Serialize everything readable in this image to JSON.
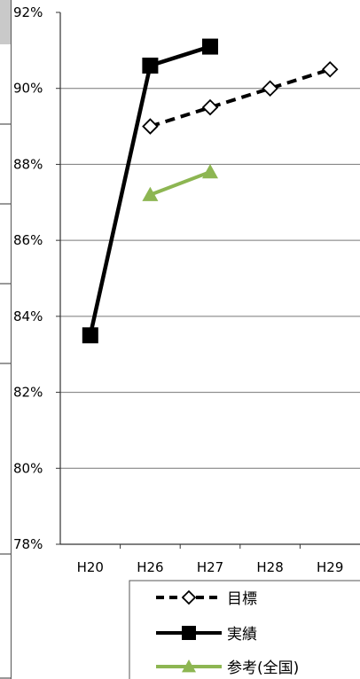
{
  "chart_data": {
    "type": "line",
    "title": "",
    "xlabel": "",
    "ylabel": "",
    "categories": [
      "H20",
      "H26",
      "H27",
      "H28",
      "H29"
    ],
    "ylim": [
      78,
      92
    ],
    "y_tick_labels": [
      "92%",
      "90%",
      "88%",
      "86%",
      "84%",
      "82%",
      "80%",
      "78%"
    ],
    "grid": true,
    "legend": "bottom-right",
    "series": [
      {
        "name": "目標",
        "color": "#000000",
        "style": "dashed",
        "marker": "open-diamond",
        "points": [
          {
            "x": 1.5,
            "y": 89.0
          },
          {
            "x": 2.5,
            "y": 89.5
          },
          {
            "x": 3.5,
            "y": 90.0
          },
          {
            "x": 4.5,
            "y": 90.5
          }
        ]
      },
      {
        "name": "実績",
        "color": "#000000",
        "style": "solid",
        "marker": "filled-square",
        "points": [
          {
            "x": 0.5,
            "y": 83.5
          },
          {
            "x": 1.5,
            "y": 90.6
          },
          {
            "x": 2.5,
            "y": 91.1
          }
        ]
      },
      {
        "name": "参考(全国)",
        "color": "#8db652",
        "style": "solid",
        "marker": "filled-triangle",
        "points": [
          {
            "x": 1.5,
            "y": 87.2
          },
          {
            "x": 2.5,
            "y": 87.8
          }
        ]
      }
    ]
  }
}
